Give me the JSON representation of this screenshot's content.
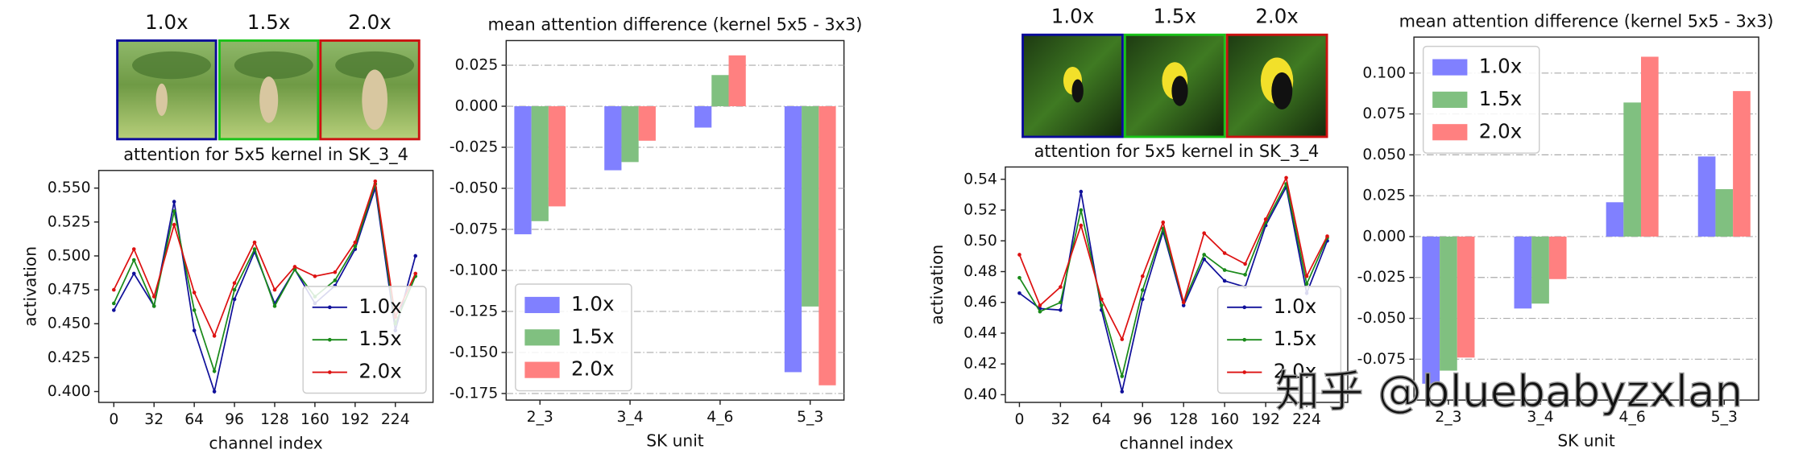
{
  "thumbnail_sets": [
    {
      "labels": [
        "1.0x",
        "1.5x",
        "2.0x"
      ],
      "border_colors": [
        "#0a0a9a",
        "#19c219",
        "#cc1111"
      ]
    },
    {
      "labels": [
        "1.0x",
        "1.5x",
        "2.0x"
      ],
      "border_colors": [
        "#0a0a9a",
        "#19c219",
        "#cc1111"
      ]
    }
  ],
  "watermark": "知乎 @bluebabyzxlan",
  "chart_data": [
    {
      "type": "line",
      "title": "attention for 5x5 kernel in SK_3_4",
      "x_label": "channel index",
      "y_label": "activation",
      "x": [
        0,
        16,
        32,
        48,
        64,
        80,
        96,
        112,
        128,
        144,
        160,
        176,
        192,
        208,
        224,
        240
      ],
      "series": [
        {
          "name": "1.0x",
          "color": "#10109a",
          "values": [
            0.46,
            0.487,
            0.463,
            0.54,
            0.445,
            0.4,
            0.468,
            0.503,
            0.465,
            0.49,
            0.465,
            0.478,
            0.505,
            0.55,
            0.445,
            0.5
          ]
        },
        {
          "name": "1.5x",
          "color": "#1a8a1a",
          "values": [
            0.465,
            0.497,
            0.463,
            0.533,
            0.46,
            0.415,
            0.475,
            0.505,
            0.463,
            0.49,
            0.47,
            0.482,
            0.507,
            0.553,
            0.45,
            0.485
          ]
        },
        {
          "name": "2.0x",
          "color": "#dd1111",
          "values": [
            0.475,
            0.505,
            0.47,
            0.523,
            0.473,
            0.441,
            0.48,
            0.51,
            0.475,
            0.492,
            0.485,
            0.488,
            0.51,
            0.555,
            0.455,
            0.487
          ]
        }
      ],
      "xlim": [
        -12,
        254
      ],
      "ylim": [
        0.392,
        0.563
      ],
      "xticks": [
        0,
        32,
        64,
        96,
        128,
        160,
        192,
        224
      ],
      "yticks": [
        {
          "value": 0.4,
          "label": "0.400"
        },
        0.425,
        {
          "value": 0.45,
          "label": "0.450"
        },
        0.475,
        {
          "value": 0.5,
          "label": "0.500"
        },
        0.525,
        {
          "value": 0.55,
          "label": "0.550"
        }
      ],
      "grid": false,
      "legend": "lower right"
    },
    {
      "type": "bar",
      "title": "mean attention difference (kernel 5x5 - 3x3)",
      "x_label": "SK unit",
      "categories": [
        "2_3",
        "3_4",
        "4_6",
        "5_3"
      ],
      "series": [
        {
          "name": "1.0x",
          "color": "#8080ff",
          "values": [
            -0.078,
            -0.039,
            -0.013,
            -0.162
          ]
        },
        {
          "name": "1.5x",
          "color": "#80c080",
          "values": [
            -0.07,
            -0.034,
            0.019,
            -0.122
          ]
        },
        {
          "name": "2.0x",
          "color": "#ff8080",
          "values": [
            -0.061,
            -0.021,
            0.031,
            -0.17
          ]
        }
      ],
      "ylim": [
        -0.179,
        0.04
      ],
      "yticks": [
        -0.175,
        {
          "value": -0.15,
          "label": "-0.150"
        },
        -0.125,
        {
          "value": -0.1,
          "label": "-0.100"
        },
        -0.075,
        {
          "value": -0.05,
          "label": "-0.050"
        },
        -0.025,
        {
          "value": 0,
          "label": "0.000"
        },
        0.025
      ],
      "grid": true,
      "legend": "lower left"
    },
    {
      "type": "line",
      "title": "attention for 5x5 kernel in SK_3_4",
      "x_label": "channel index",
      "y_label": "activation",
      "x": [
        0,
        16,
        32,
        48,
        64,
        80,
        96,
        112,
        128,
        144,
        160,
        176,
        192,
        208,
        224,
        240
      ],
      "series": [
        {
          "name": "1.0x",
          "color": "#10109a",
          "values": [
            0.466,
            0.456,
            0.455,
            0.532,
            0.455,
            0.402,
            0.462,
            0.506,
            0.458,
            0.488,
            0.474,
            0.47,
            0.51,
            0.535,
            0.466,
            0.5
          ]
        },
        {
          "name": "1.5x",
          "color": "#1a8a1a",
          "values": [
            0.476,
            0.454,
            0.46,
            0.52,
            0.458,
            0.412,
            0.468,
            0.508,
            0.46,
            0.491,
            0.481,
            0.478,
            0.512,
            0.537,
            0.472,
            0.502
          ]
        },
        {
          "name": "2.0x",
          "color": "#dd1111",
          "values": [
            0.491,
            0.458,
            0.47,
            0.51,
            0.462,
            0.436,
            0.477,
            0.512,
            0.46,
            0.505,
            0.492,
            0.485,
            0.514,
            0.541,
            0.477,
            0.503
          ]
        }
      ],
      "xlim": [
        -11,
        256
      ],
      "ylim": [
        0.395,
        0.548
      ],
      "xticks": [
        0,
        32,
        64,
        96,
        128,
        160,
        192,
        224
      ],
      "yticks": [
        {
          "value": 0.4,
          "label": "0.40"
        },
        0.42,
        0.44,
        0.46,
        0.48,
        {
          "value": 0.5,
          "label": "0.50"
        },
        0.52,
        0.54
      ],
      "grid": false,
      "legend": "lower right"
    },
    {
      "type": "bar",
      "title": "mean attention difference (kernel 5x5 - 3x3)",
      "x_label": "SK unit",
      "categories": [
        "2_3",
        "3_4",
        "4_6",
        "5_3"
      ],
      "series": [
        {
          "name": "1.0x",
          "color": "#8080ff",
          "values": [
            -0.09,
            -0.044,
            0.021,
            0.049
          ]
        },
        {
          "name": "1.5x",
          "color": "#80c080",
          "values": [
            -0.082,
            -0.041,
            0.082,
            0.029
          ]
        },
        {
          "name": "2.0x",
          "color": "#ff8080",
          "values": [
            -0.074,
            -0.026,
            0.11,
            0.089
          ]
        }
      ],
      "ylim": [
        -0.1,
        0.122
      ],
      "yticks": [
        -0.075,
        {
          "value": -0.05,
          "label": "-0.050"
        },
        -0.025,
        {
          "value": 0,
          "label": "0.000"
        },
        0.025,
        {
          "value": 0.05,
          "label": "0.050"
        },
        0.075,
        {
          "value": 0.1,
          "label": "0.100"
        }
      ],
      "grid": true,
      "legend": "upper left"
    }
  ]
}
